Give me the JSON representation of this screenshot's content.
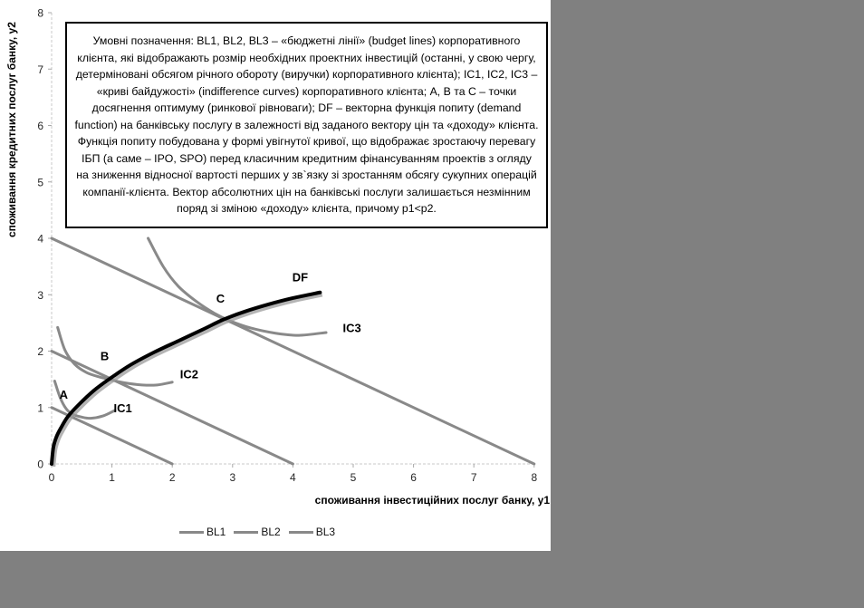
{
  "page": {
    "background_color": "#808080",
    "panel_color": "#ffffff"
  },
  "legend_box": {
    "text": "Умовні позначення: BL1, BL2, BL3 – «бюджетні лінії» (budget lines) корпоративного клієнта, які відображають розмір необхідних проектних інвестицій (останні, у свою чергу, детерміновані обсягом річного обороту (виручки) корпоративного клієнта); IC1, IC2, IC3 – «криві байдужості» (indifference curves) корпоративного клієнта; А, В та С – точки досягнення оптимуму (ринкової рівноваги); DF – векторна функція попиту (demand function) на банківську послугу в залежності від заданого вектору цін та «доходу» клієнта. Функція попиту побудована у формі увігнутої кривої, що відображає зростаючу перевагу ІБП (а саме – IPO, SPO) перед класичним кредитним фінансуванням проектів з огляду на зниження відносної вартості перших у зв`язку зі зростанням обсягу сукупних операцій компанії-клієнта. Вектор абсолютних цін на банківські послуги залишається незмінним поряд зі зміною «доходу» клієнта, причому p1<p2."
  },
  "chart_data": {
    "type": "line",
    "xlabel": "споживання інвестиційних послуг банку, у1",
    "ylabel": "споживання кредитних послуг банку, у2",
    "xlim": [
      0,
      8
    ],
    "ylim": [
      0,
      8
    ],
    "xticks": [
      0,
      1,
      2,
      3,
      4,
      5,
      6,
      7,
      8
    ],
    "yticks": [
      0,
      1,
      2,
      3,
      4,
      5,
      6,
      7,
      8
    ],
    "grid": false,
    "axis_color": "#c9c9c9",
    "tick_color": "#a8a8a8",
    "line_gray": "#898989",
    "df_color": "#000000",
    "legend": {
      "position": "bottom",
      "entries": [
        "BL1",
        "BL2",
        "BL3"
      ]
    },
    "series": [
      {
        "name": "BL1",
        "kind": "budget-line",
        "color": "#898989",
        "width": 3,
        "points": [
          [
            0,
            1
          ],
          [
            2,
            0
          ]
        ]
      },
      {
        "name": "BL2",
        "kind": "budget-line",
        "color": "#898989",
        "width": 3,
        "points": [
          [
            0,
            2
          ],
          [
            4,
            0
          ]
        ]
      },
      {
        "name": "BL3",
        "kind": "budget-line",
        "color": "#898989",
        "width": 3,
        "points": [
          [
            0,
            4
          ],
          [
            8,
            0
          ]
        ]
      },
      {
        "name": "IC1",
        "kind": "indifference-curve",
        "color": "#898989",
        "width": 3,
        "points": [
          [
            0.05,
            1.47
          ],
          [
            0.14,
            1.18
          ],
          [
            0.24,
            0.98
          ],
          [
            0.35,
            0.88
          ],
          [
            0.5,
            0.83
          ],
          [
            0.65,
            0.81
          ],
          [
            0.85,
            0.85
          ],
          [
            1.05,
            0.95
          ]
        ]
      },
      {
        "name": "IC2",
        "kind": "indifference-curve",
        "color": "#898989",
        "width": 3,
        "points": [
          [
            0.1,
            2.42
          ],
          [
            0.22,
            2.02
          ],
          [
            0.38,
            1.77
          ],
          [
            0.58,
            1.62
          ],
          [
            0.8,
            1.54
          ],
          [
            0.95,
            1.5
          ],
          [
            1.2,
            1.44
          ],
          [
            1.5,
            1.4
          ],
          [
            1.75,
            1.4
          ],
          [
            2.0,
            1.45
          ]
        ]
      },
      {
        "name": "IC3",
        "kind": "indifference-curve",
        "color": "#898989",
        "width": 3,
        "points": [
          [
            1.6,
            4.0
          ],
          [
            1.85,
            3.5
          ],
          [
            2.1,
            3.15
          ],
          [
            2.4,
            2.88
          ],
          [
            2.7,
            2.67
          ],
          [
            2.95,
            2.54
          ],
          [
            3.3,
            2.41
          ],
          [
            3.7,
            2.32
          ],
          [
            4.1,
            2.28
          ],
          [
            4.55,
            2.33
          ]
        ]
      },
      {
        "name": "DF",
        "kind": "demand-function",
        "color": "#000000",
        "width": 4,
        "shadow": true,
        "points": [
          [
            0,
            0
          ],
          [
            0.03,
            0.3
          ],
          [
            0.08,
            0.48
          ],
          [
            0.15,
            0.63
          ],
          [
            0.27,
            0.84
          ],
          [
            0.45,
            1.05
          ],
          [
            0.7,
            1.3
          ],
          [
            0.95,
            1.5
          ],
          [
            1.3,
            1.75
          ],
          [
            1.7,
            1.98
          ],
          [
            2.1,
            2.18
          ],
          [
            2.5,
            2.38
          ],
          [
            2.85,
            2.56
          ],
          [
            3.2,
            2.7
          ],
          [
            3.6,
            2.83
          ],
          [
            4.0,
            2.94
          ],
          [
            4.45,
            3.04
          ]
        ]
      }
    ],
    "equilibrium_points": [
      {
        "label": "A",
        "x": 0.27,
        "y": 0.87
      },
      {
        "label": "B",
        "x": 0.95,
        "y": 1.52
      },
      {
        "label": "C",
        "x": 2.85,
        "y": 2.58
      }
    ],
    "annotations": [
      {
        "text": "A",
        "x": 0.2,
        "y": 1.22
      },
      {
        "text": "B",
        "x": 0.88,
        "y": 1.9
      },
      {
        "text": "C",
        "x": 2.8,
        "y": 2.92
      },
      {
        "text": "DF",
        "x": 4.12,
        "y": 3.3
      },
      {
        "text": "IC1",
        "x": 1.18,
        "y": 0.98
      },
      {
        "text": "IC2",
        "x": 2.28,
        "y": 1.58
      },
      {
        "text": "IC3",
        "x": 4.98,
        "y": 2.4
      }
    ]
  }
}
